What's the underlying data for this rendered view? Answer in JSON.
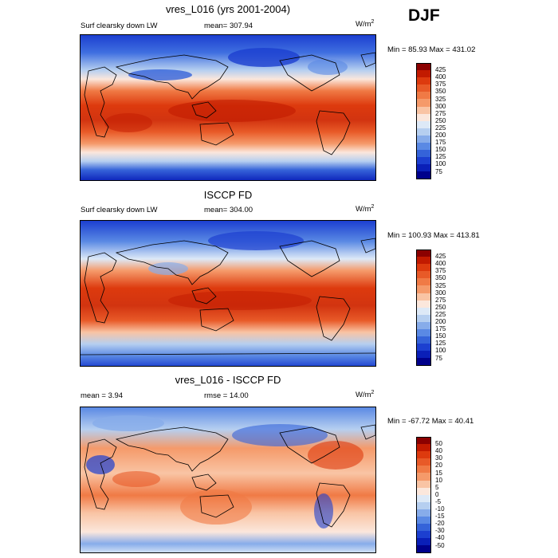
{
  "season": "DJF",
  "panels": [
    {
      "title": "vres_L016 (yrs 2001-2004)",
      "left_label": "Surf clearsky down LW",
      "center_label": "mean= 307.94",
      "units_base": "W/m",
      "units_exp": "2",
      "minmax": "Min =  85.93 Max = 431.02"
    },
    {
      "title": "ISCCP FD",
      "left_label": "Surf clearsky down LW",
      "center_label": "mean= 304.00",
      "units_base": "W/m",
      "units_exp": "2",
      "minmax": "Min = 100.93 Max = 413.81"
    },
    {
      "title": "vres_L016 - ISCCP FD",
      "left_label": "mean =   3.94",
      "center_label": "rmse =  14.00",
      "units_base": "W/m",
      "units_exp": "2",
      "minmax": "Min = -67.72 Max =  40.41"
    }
  ],
  "colorbar_abs": {
    "labels": [
      "425",
      "400",
      "375",
      "350",
      "325",
      "300",
      "275",
      "250",
      "225",
      "200",
      "175",
      "150",
      "125",
      "100",
      "75"
    ],
    "colors": [
      "#8b0000",
      "#c21a00",
      "#dd3a0e",
      "#e85a28",
      "#f07a45",
      "#f59a6a",
      "#f9c4a4",
      "#fbe7dc",
      "#dde9f7",
      "#b6cff0",
      "#87acea",
      "#5a89e4",
      "#3563d9",
      "#1c3fd0",
      "#0a1fb8",
      "#00008b"
    ]
  },
  "colorbar_diff": {
    "labels": [
      "50",
      "40",
      "30",
      "20",
      "15",
      "10",
      "5",
      "0",
      "-5",
      "-10",
      "-15",
      "-20",
      "-30",
      "-40",
      "-50"
    ],
    "colors": [
      "#8b0000",
      "#c21a00",
      "#dd3a0e",
      "#e85a28",
      "#f07a45",
      "#f59a6a",
      "#f9c4a4",
      "#fbe7dc",
      "#dde9f7",
      "#b6cff0",
      "#87acea",
      "#5a89e4",
      "#3563d9",
      "#1c3fd0",
      "#0a1fb8",
      "#00008b"
    ]
  }
}
